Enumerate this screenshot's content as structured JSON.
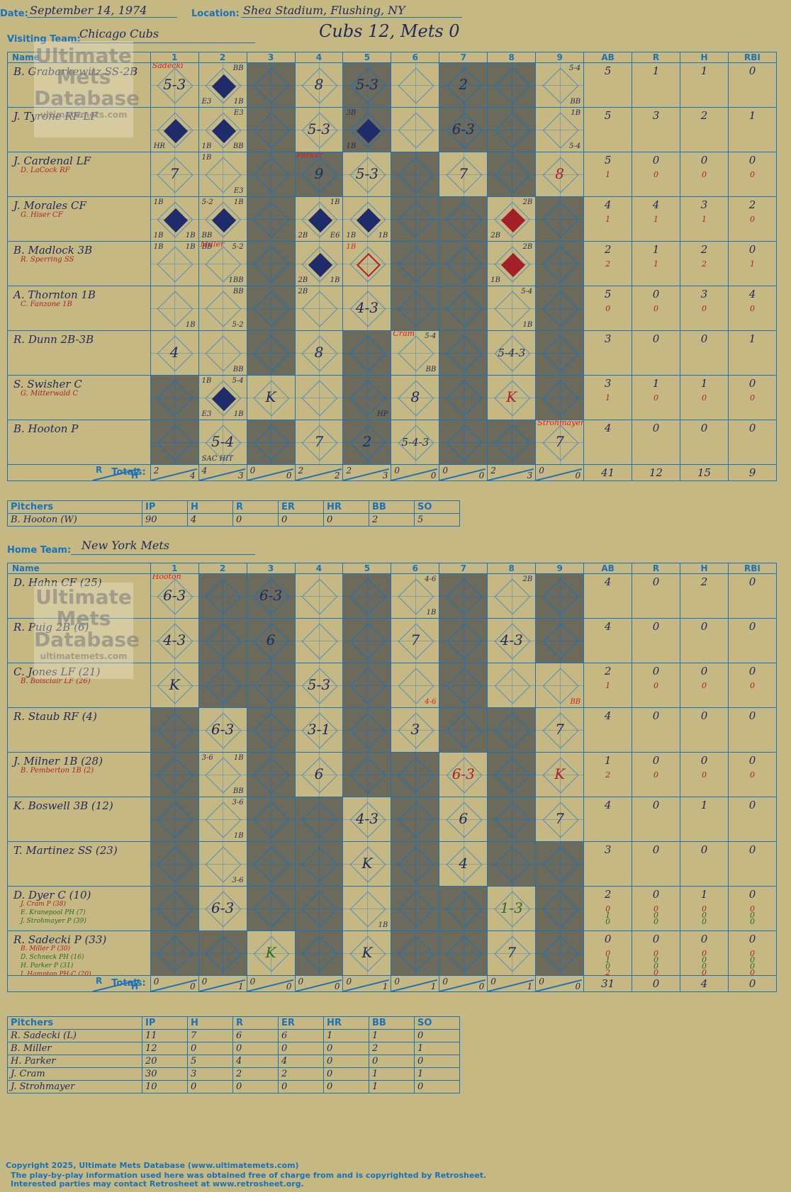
{
  "header": {
    "date_label": "Date:",
    "date": "September 14, 1974",
    "location_label": "Location:",
    "location": "Shea Stadium, Flushing, NY",
    "visiting_label": "Visiting Team:",
    "visiting_team": "Chicago Cubs",
    "score": "Cubs 12, Mets 0",
    "home_label": "Home Team:",
    "home_team": "New York Mets"
  },
  "columns": {
    "name": "Name",
    "innings": [
      "1",
      "2",
      "3",
      "4",
      "5",
      "6",
      "7",
      "8",
      "9"
    ],
    "stats": [
      "AB",
      "R",
      "H",
      "RBI"
    ]
  },
  "totals_label": "Totals:",
  "rh": {
    "r": "R",
    "h": "H"
  },
  "visitors": {
    "batters": [
      {
        "name": "B. Grabarkewitz SS-2B",
        "subs": [],
        "ab": [
          "5"
        ],
        "r": [
          "1"
        ],
        "h": [
          "1"
        ],
        "rbi": [
          "0"
        ],
        "cells": [
          "5-3",
          "",
          "",
          "8",
          "",
          "5-3",
          "",
          "2",
          "",
          "bb"
        ]
      },
      {
        "name": "J. Tyrone RF-LF",
        "subs": [],
        "ab": [
          "5"
        ],
        "r": [
          "3"
        ],
        "h": [
          "2"
        ],
        "rbi": [
          "1"
        ]
      },
      {
        "name": "J. Cardenal LF",
        "subs": [
          "D. LaCock RF"
        ],
        "ab": [
          "5",
          "1"
        ],
        "r": [
          "0",
          "0"
        ],
        "h": [
          "0",
          "0"
        ],
        "rbi": [
          "0",
          "0"
        ]
      },
      {
        "name": "J. Morales CF",
        "subs": [
          "G. Hiser CF"
        ],
        "ab": [
          "4",
          "1"
        ],
        "r": [
          "4",
          "1"
        ],
        "h": [
          "3",
          "1"
        ],
        "rbi": [
          "2",
          "0"
        ]
      },
      {
        "name": "B. Madlock 3B",
        "subs": [
          "R. Sperring SS"
        ],
        "ab": [
          "2",
          "2"
        ],
        "r": [
          "1",
          "1"
        ],
        "h": [
          "2",
          "2"
        ],
        "rbi": [
          "0",
          "1"
        ]
      },
      {
        "name": "A. Thornton 1B",
        "subs": [
          "C. Fanzone 1B"
        ],
        "ab": [
          "5",
          "0"
        ],
        "r": [
          "0",
          "0"
        ],
        "h": [
          "3",
          "0"
        ],
        "rbi": [
          "4",
          "0"
        ]
      },
      {
        "name": "R. Dunn 2B-3B",
        "subs": [],
        "ab": [
          "3"
        ],
        "r": [
          "0"
        ],
        "h": [
          "0"
        ],
        "rbi": [
          "1"
        ]
      },
      {
        "name": "S. Swisher C",
        "subs": [
          "G. Mitterwald C"
        ],
        "ab": [
          "3",
          "1"
        ],
        "r": [
          "1",
          "0"
        ],
        "h": [
          "1",
          "0"
        ],
        "rbi": [
          "0",
          "0"
        ]
      },
      {
        "name": "B. Hooton P",
        "subs": [],
        "ab": [
          "4"
        ],
        "r": [
          "0"
        ],
        "h": [
          "0"
        ],
        "rbi": [
          "0"
        ]
      }
    ],
    "plays": {
      "0": {
        "1": {
          "t": "5-3",
          "p": "Sadecki"
        },
        "2": {
          "run": true,
          "tr": "BB",
          "bl": "E3",
          "br": "1B"
        },
        "4": {
          "t": "8"
        },
        "5": {
          "t": "5-3"
        },
        "7": {
          "t": "2"
        },
        "9": {
          "tr": "5-4",
          "br": "BB"
        }
      },
      "1": {
        "1": {
          "run": true,
          "bl": "HR"
        },
        "2": {
          "run": true,
          "tr": "E3",
          "bl": "1B",
          "br": "BB"
        },
        "4": {
          "t": "5-3"
        },
        "5": {
          "run": true,
          "tl": "3B",
          "bl": "1B"
        },
        "7": {
          "t": "6-3"
        },
        "9": {
          "tr": "1B",
          "br": "5-4"
        }
      },
      "2": {
        "1": {
          "t": "7"
        },
        "2": {
          "tl": "1B",
          "br": "E3"
        },
        "4": {
          "t": "9",
          "p": "Parker"
        },
        "5": {
          "t": "5-3"
        },
        "7": {
          "t": "7"
        },
        "9": {
          "t": "8",
          "red": true
        }
      },
      "3": {
        "1": {
          "run": true,
          "tl": "1B",
          "bl": "1B",
          "br": "1B"
        },
        "2": {
          "run": true,
          "tl": "5-2",
          "tr": "1B",
          "bl": "BB"
        },
        "4": {
          "run": true,
          "tr": "1B",
          "bl": "2B",
          "br": "E6"
        },
        "5": {
          "run": true,
          "bl": "1B",
          "br": "1B"
        },
        "8": {
          "run": true,
          "red": true,
          "tr": "2B",
          "bl": "2B"
        }
      },
      "4": {
        "1": {
          "tl": "1B",
          "tr": "1B"
        },
        "2": {
          "tl": "BB",
          "tr": "5-2",
          "br": "1BB",
          "p": "Miller"
        },
        "4": {
          "run": true,
          "bl": "2B",
          "br": "1B"
        },
        "5": {
          "open": true,
          "redtl": "1B"
        },
        "8": {
          "run": true,
          "red": true,
          "tr": "2B",
          "bl": "1B"
        }
      },
      "5": {
        "1": {
          "br": "1B"
        },
        "2": {
          "tr": "BB",
          "br": "5-2"
        },
        "4": {
          "tl": "2B"
        },
        "5": {
          "t": "4-3"
        },
        "8": {
          "tr": "5-4",
          "br": "1B"
        }
      },
      "6": {
        "1": {
          "t": "4"
        },
        "2": {
          "br": "BB"
        },
        "4": {
          "t": "8"
        },
        "6": {
          "tr": "5-4",
          "br": "BB",
          "p": "Cram"
        },
        "8": {
          "t": "5-4-3"
        }
      },
      "7": {
        "2": {
          "run": true,
          "tl": "1B",
          "tr": "5-4",
          "bl": "E3",
          "br": "1B"
        },
        "3": {
          "t": "K"
        },
        "5": {
          "br": "HP"
        },
        "6": {
          "t": "8"
        },
        "8": {
          "t": "K",
          "red": true
        }
      },
      "8": {
        "2": {
          "t": "5-4",
          "bl": "SAC HIT"
        },
        "4": {
          "t": "7"
        },
        "5": {
          "t": "2"
        },
        "6": {
          "t": "5-4-3"
        },
        "9": {
          "t": "7",
          "p": "Strohmayer"
        }
      }
    },
    "gray": {
      "0": [
        "3",
        "5",
        "7",
        "8"
      ],
      "1": [
        "3",
        "5",
        "7",
        "8"
      ],
      "2": [
        "3",
        "4",
        "6",
        "8"
      ],
      "3": [
        "3",
        "6",
        "7",
        "9"
      ],
      "4": [
        "3",
        "6",
        "7",
        "9"
      ],
      "5": [
        "3",
        "6",
        "7",
        "9"
      ],
      "6": [
        "3",
        "5",
        "7",
        "9"
      ],
      "7": [
        "1",
        "5",
        "7",
        "9"
      ],
      "8": [
        "1",
        "3",
        "5",
        "7",
        "8"
      ]
    },
    "totals": {
      "innings": [
        [
          "2",
          "4"
        ],
        [
          "4",
          "3"
        ],
        [
          "0",
          "0"
        ],
        [
          "2",
          "2"
        ],
        [
          "2",
          "3"
        ],
        [
          "0",
          "0"
        ],
        [
          "0",
          "0"
        ],
        [
          "2",
          "3"
        ],
        [
          "0",
          "0"
        ]
      ],
      "ab": "41",
      "r": "12",
      "h": "15",
      "rbi": "9"
    },
    "pitch_headers": [
      "Pitchers",
      "IP",
      "H",
      "R",
      "ER",
      "HR",
      "BB",
      "SO"
    ],
    "pitchers": [
      [
        "B. Hooton (W)",
        "90",
        "4",
        "0",
        "0",
        "0",
        "2",
        "5"
      ]
    ]
  },
  "home": {
    "batters": [
      {
        "name": "D. Hahn CF (25)",
        "subs": [],
        "ab": [
          "4"
        ],
        "r": [
          "0"
        ],
        "h": [
          "2"
        ],
        "rbi": [
          "0"
        ]
      },
      {
        "name": "R. Puig 2B (6)",
        "subs": [],
        "ab": [
          "4"
        ],
        "r": [
          "0"
        ],
        "h": [
          "0"
        ],
        "rbi": [
          "0"
        ]
      },
      {
        "name": "C. Jones LF (21)",
        "subs": [
          "B. Boisclair LF (26)"
        ],
        "ab": [
          "2",
          "1"
        ],
        "r": [
          "0",
          "0"
        ],
        "h": [
          "0",
          "0"
        ],
        "rbi": [
          "0",
          "0"
        ]
      },
      {
        "name": "R. Staub RF (4)",
        "subs": [],
        "ab": [
          "4"
        ],
        "r": [
          "0"
        ],
        "h": [
          "0"
        ],
        "rbi": [
          "0"
        ]
      },
      {
        "name": "J. Milner 1B (28)",
        "subs": [
          "B. Pemberton 1B (2)"
        ],
        "ab": [
          "1",
          "2"
        ],
        "r": [
          "0",
          "0"
        ],
        "h": [
          "0",
          "0"
        ],
        "rbi": [
          "0",
          "0"
        ]
      },
      {
        "name": "K. Boswell 3B (12)",
        "subs": [],
        "ab": [
          "4"
        ],
        "r": [
          "0"
        ],
        "h": [
          "1"
        ],
        "rbi": [
          "0"
        ]
      },
      {
        "name": "T. Martinez SS (23)",
        "subs": [],
        "ab": [
          "3"
        ],
        "r": [
          "0"
        ],
        "h": [
          "0"
        ],
        "rbi": [
          "0"
        ]
      },
      {
        "name": "D. Dyer C (10)",
        "subs": [
          "J. Cram P (38)",
          "E. Kranepool PH (7)",
          "J. Strohmayer P (39)"
        ],
        "ab": [
          "2",
          "0",
          "1",
          "0"
        ],
        "r": [
          "0",
          "0",
          "0",
          "0"
        ],
        "h": [
          "1",
          "0",
          "0",
          "0"
        ],
        "rbi": [
          "0",
          "0",
          "0",
          "0"
        ]
      },
      {
        "name": "R. Sadecki P (33)",
        "subs": [
          "B. Miller P (30)",
          "D. Schneck PH (16)",
          "H. Parker P (31)",
          "I. Hampton PH-C (20)"
        ],
        "ab": [
          "0",
          "0",
          "1",
          "0",
          "2"
        ],
        "r": [
          "0",
          "0",
          "0",
          "0",
          "0"
        ],
        "h": [
          "0",
          "0",
          "0",
          "0",
          "0"
        ],
        "rbi": [
          "0",
          "0",
          "0",
          "0",
          "0"
        ]
      }
    ],
    "plays": {
      "0": {
        "1": {
          "t": "6-3",
          "p": "Hooton"
        },
        "3": {
          "t": "6-3"
        },
        "6": {
          "tr": "4-6",
          "br": "1B"
        },
        "8": {
          "tr": "2B"
        }
      },
      "1": {
        "1": {
          "t": "4-3"
        },
        "3": {
          "t": "6"
        },
        "6": {
          "t": "7"
        },
        "8": {
          "t": "4-3"
        }
      },
      "2": {
        "1": {
          "t": "K"
        },
        "4": {
          "t": "5-3"
        },
        "6": {
          "redbr": "4-6"
        },
        "9": {
          "redbr": "BB"
        }
      },
      "3": {
        "2": {
          "t": "6-3"
        },
        "4": {
          "t": "3-1"
        },
        "6": {
          "t": "3"
        },
        "9": {
          "t": "7"
        }
      },
      "4": {
        "2": {
          "tl": "3-6",
          "tr": "1B",
          "br": "BB"
        },
        "4": {
          "t": "6"
        },
        "7": {
          "t": "6-3",
          "red": true
        },
        "9": {
          "t": "K",
          "red": true
        }
      },
      "5": {
        "2": {
          "tr": "3-6",
          "br": "1B"
        },
        "5": {
          "t": "4-3"
        },
        "7": {
          "t": "6"
        },
        "9": {
          "t": "7"
        }
      },
      "6": {
        "2": {
          "br": "3-6"
        },
        "5": {
          "t": "K"
        },
        "7": {
          "t": "4"
        }
      },
      "7": {
        "2": {
          "t": "6-3"
        },
        "5": {
          "br": "1B"
        },
        "8": {
          "t": "1-3",
          "grn": true
        }
      },
      "8": {
        "3": {
          "t": "K",
          "grn": true
        },
        "5": {
          "t": "K"
        },
        "8": {
          "t": "7"
        }
      }
    },
    "gray": {
      "0": [
        "2",
        "3",
        "5",
        "7",
        "9"
      ],
      "1": [
        "2",
        "3",
        "5",
        "7",
        "9"
      ],
      "2": [
        "2",
        "3",
        "5",
        "7"
      ],
      "3": [
        "1",
        "3",
        "5",
        "7",
        "8"
      ],
      "4": [
        "1",
        "3",
        "5",
        "6",
        "8"
      ],
      "5": [
        "1",
        "3",
        "4",
        "6",
        "8"
      ],
      "6": [
        "1",
        "3",
        "4",
        "6",
        "8",
        "9"
      ],
      "7": [
        "1",
        "3",
        "4",
        "6",
        "7",
        "9"
      ],
      "8": [
        "1",
        "2",
        "4",
        "6",
        "7",
        "9"
      ]
    },
    "totals": {
      "innings": [
        [
          "0",
          "0"
        ],
        [
          "0",
          "1"
        ],
        [
          "0",
          "0"
        ],
        [
          "0",
          "0"
        ],
        [
          "0",
          "1"
        ],
        [
          "0",
          "1"
        ],
        [
          "0",
          "0"
        ],
        [
          "0",
          "1"
        ],
        [
          "0",
          "0"
        ]
      ],
      "ab": "31",
      "r": "0",
      "h": "4",
      "rbi": "0"
    },
    "pitchers": [
      [
        "R. Sadecki (L)",
        "11",
        "7",
        "6",
        "6",
        "1",
        "1",
        "0"
      ],
      [
        "B. Miller",
        "12",
        "0",
        "0",
        "0",
        "0",
        "2",
        "1"
      ],
      [
        "H. Parker",
        "20",
        "5",
        "4",
        "4",
        "0",
        "0",
        "0"
      ],
      [
        "J. Cram",
        "30",
        "3",
        "2",
        "2",
        "0",
        "1",
        "1"
      ],
      [
        "J. Strohmayer",
        "10",
        "0",
        "0",
        "0",
        "0",
        "1",
        "0"
      ]
    ]
  },
  "watermark": {
    "line1": "Ultimate",
    "line2": "Mets",
    "line3": "Database",
    "url": "ultimatemets.com"
  },
  "footer": {
    "copyright": "Copyright 2025, Ultimate Mets Database (www.ultimatemets.com)",
    "line2": "The play-by-play information used here was obtained free of charge from and is copyrighted by Retrosheet.",
    "line3": "Interested parties may contact Retrosheet at www.retrosheet.org."
  }
}
